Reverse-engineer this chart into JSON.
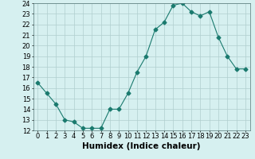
{
  "x": [
    0,
    1,
    2,
    3,
    4,
    5,
    6,
    7,
    8,
    9,
    10,
    11,
    12,
    13,
    14,
    15,
    16,
    17,
    18,
    19,
    20,
    21,
    22,
    23
  ],
  "y": [
    16.5,
    15.5,
    14.5,
    13.0,
    12.8,
    12.2,
    12.2,
    12.2,
    14.0,
    14.0,
    15.5,
    17.5,
    19.0,
    21.5,
    22.2,
    23.8,
    24.0,
    23.2,
    22.8,
    23.2,
    20.8,
    19.0,
    17.8,
    17.8
  ],
  "xlabel": "Humidex (Indice chaleur)",
  "xlim": [
    -0.5,
    23.5
  ],
  "ylim": [
    12,
    24
  ],
  "yticks": [
    12,
    13,
    14,
    15,
    16,
    17,
    18,
    19,
    20,
    21,
    22,
    23,
    24
  ],
  "xticks": [
    0,
    1,
    2,
    3,
    4,
    5,
    6,
    7,
    8,
    9,
    10,
    11,
    12,
    13,
    14,
    15,
    16,
    17,
    18,
    19,
    20,
    21,
    22,
    23
  ],
  "line_color": "#1a7a6e",
  "marker": "D",
  "marker_size": 2.5,
  "bg_color": "#d6f0f0",
  "grid_color": "#b0cece",
  "xlabel_fontsize": 7.5,
  "tick_fontsize": 6.0
}
